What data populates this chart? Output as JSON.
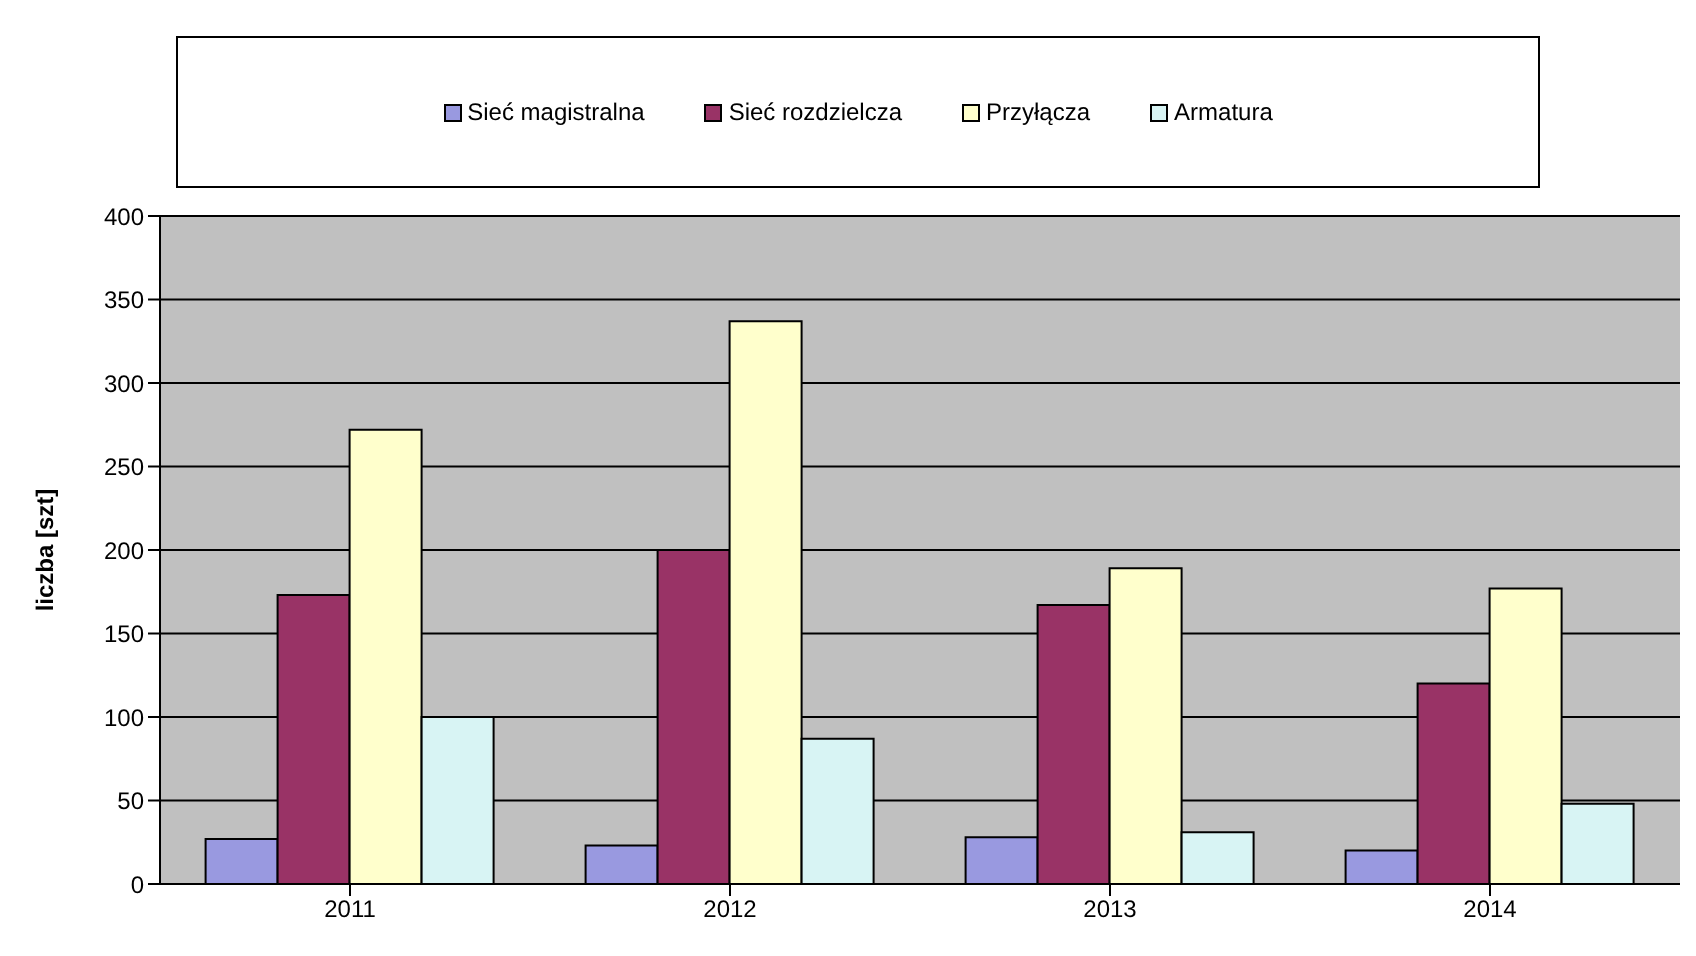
{
  "chart_data": {
    "type": "bar",
    "ylabel": "liczba [szt]",
    "categories": [
      "2011",
      "2012",
      "2013",
      "2014"
    ],
    "series": [
      {
        "name": "Sieć magistralna",
        "color": "#9999e0",
        "values": [
          27,
          23,
          28,
          20
        ]
      },
      {
        "name": "Sieć rozdzielcza",
        "color": "#993366",
        "values": [
          173,
          200,
          167,
          120
        ]
      },
      {
        "name": "Przyłącza",
        "color": "#ffffcc",
        "values": [
          272,
          337,
          189,
          177
        ]
      },
      {
        "name": "Armatura",
        "color": "#d8f4f4",
        "values": [
          100,
          87,
          31,
          48
        ]
      }
    ],
    "ylim": [
      0,
      400
    ],
    "yticks": [
      0,
      50,
      100,
      150,
      200,
      250,
      300,
      350,
      400
    ],
    "grid": "y",
    "legend": "top"
  }
}
